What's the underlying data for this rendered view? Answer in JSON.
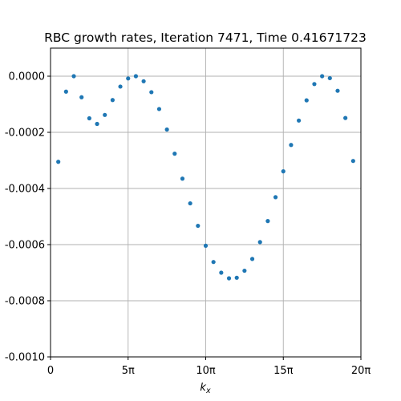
{
  "chart_data": {
    "type": "scatter",
    "title": "RBC growth rates, Iteration 7471, Time 0.41671723",
    "xlabel": "k_x",
    "ylabel": "",
    "xlim": [
      0,
      20
    ],
    "ylim": [
      -0.001,
      0.0001
    ],
    "x_unit": "π",
    "x_ticks": [
      0,
      5,
      10,
      15,
      20
    ],
    "x_tick_labels": [
      "0",
      "5π",
      "10π",
      "15π",
      "20π"
    ],
    "y_ticks": [
      0.0,
      -0.0002,
      -0.0004,
      -0.0006,
      -0.0008,
      -0.001
    ],
    "y_tick_labels": [
      "0.0000",
      "-0.0002",
      "-0.0004",
      "-0.0006",
      "-0.0008",
      "-0.0010"
    ],
    "grid": true,
    "marker_color": "#1f77b4",
    "x": [
      0.5,
      1.0,
      1.5,
      2.0,
      2.5,
      3.0,
      3.5,
      4.0,
      4.5,
      5.0,
      5.5,
      6.0,
      6.5,
      7.0,
      7.5,
      8.0,
      8.5,
      9.0,
      9.5,
      10.0,
      10.5,
      11.0,
      11.5,
      12.0,
      12.5,
      13.0,
      13.5,
      14.0,
      14.5,
      15.0,
      15.5,
      16.0,
      16.5,
      17.0,
      17.5,
      18.0,
      18.5,
      19.0,
      19.5
    ],
    "y": [
      -0.000305,
      -5.5e-05,
      0.0,
      -7.5e-05,
      -0.00015,
      -0.00017,
      -0.000138,
      -8.5e-05,
      -3.7e-05,
      -8e-06,
      0.0,
      -1.8e-05,
      -5.7e-05,
      -0.000117,
      -0.00019,
      -0.000276,
      -0.000365,
      -0.000453,
      -0.000533,
      -0.000604,
      -0.000662,
      -0.0007,
      -0.00072,
      -0.000718,
      -0.000693,
      -0.000651,
      -0.000591,
      -0.000516,
      -0.000431,
      -0.000339,
      -0.000245,
      -0.000158,
      -8.6e-05,
      -2.8e-05,
      0.0,
      -7e-06,
      -5.2e-05,
      -0.000149,
      -0.000302
    ]
  }
}
